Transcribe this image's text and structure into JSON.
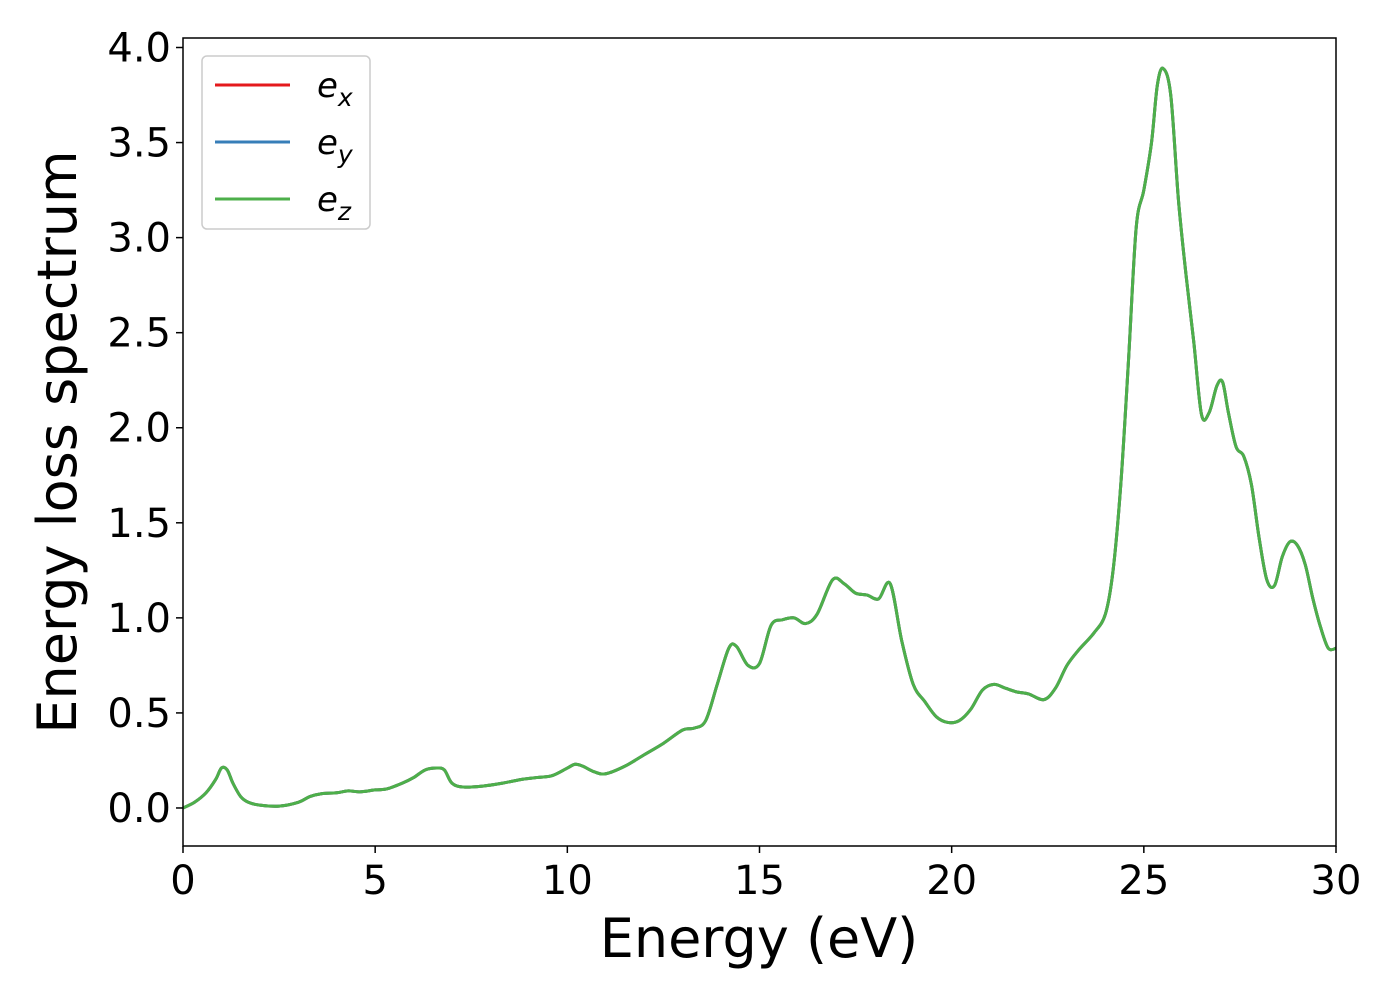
{
  "chart_data": {
    "type": "line",
    "xlabel": "Energy (eV)",
    "ylabel": "Energy loss spectrum",
    "xlim": [
      0,
      30
    ],
    "ylim": [
      -0.2,
      4.05
    ],
    "xticks": [
      0,
      5,
      10,
      15,
      20,
      25,
      30
    ],
    "yticks": [
      0.0,
      0.5,
      1.0,
      1.5,
      2.0,
      2.5,
      3.0,
      3.5,
      4.0
    ],
    "xtick_labels": [
      "0",
      "5",
      "10",
      "15",
      "20",
      "25",
      "30"
    ],
    "ytick_labels": [
      "0.0",
      "0.5",
      "1.0",
      "1.5",
      "2.0",
      "2.5",
      "3.0",
      "3.5",
      "4.0"
    ],
    "grid": false,
    "legend_position": "upper-left",
    "series": [
      {
        "name": "e",
        "sub": "x",
        "color": "#e41a1c"
      },
      {
        "name": "e",
        "sub": "y",
        "color": "#377eb8"
      },
      {
        "name": "e",
        "sub": "z",
        "color": "#4daf4a"
      }
    ],
    "x": [
      0,
      0.3,
      0.6,
      0.85,
      1.0,
      1.15,
      1.3,
      1.5,
      1.7,
      2.0,
      2.5,
      3.0,
      3.3,
      3.6,
      4.0,
      4.3,
      4.6,
      5.0,
      5.3,
      5.7,
      6.0,
      6.3,
      6.6,
      6.8,
      7.0,
      7.3,
      7.8,
      8.3,
      8.8,
      9.2,
      9.6,
      10.0,
      10.2,
      10.4,
      10.7,
      11.0,
      11.5,
      12.0,
      12.5,
      13.0,
      13.3,
      13.6,
      13.9,
      14.2,
      14.4,
      14.7,
      15.0,
      15.3,
      15.6,
      15.9,
      16.2,
      16.5,
      16.9,
      17.2,
      17.5,
      17.8,
      18.1,
      18.4,
      18.7,
      19.0,
      19.3,
      19.6,
      19.9,
      20.2,
      20.5,
      20.8,
      21.1,
      21.4,
      21.7,
      22.0,
      22.4,
      22.7,
      23.0,
      23.3,
      23.7,
      24.0,
      24.2,
      24.4,
      24.6,
      24.8,
      25.0,
      25.2,
      25.35,
      25.5,
      25.7,
      25.9,
      26.1,
      26.3,
      26.5,
      26.7,
      26.9,
      27.05,
      27.2,
      27.4,
      27.6,
      27.8,
      28.0,
      28.2,
      28.4,
      28.6,
      28.8,
      29.0,
      29.2,
      29.4,
      29.6,
      29.8,
      30.0
    ],
    "y": [
      0.0,
      0.03,
      0.08,
      0.15,
      0.21,
      0.2,
      0.13,
      0.06,
      0.03,
      0.015,
      0.01,
      0.03,
      0.06,
      0.075,
      0.08,
      0.09,
      0.085,
      0.095,
      0.1,
      0.13,
      0.16,
      0.2,
      0.21,
      0.2,
      0.13,
      0.11,
      0.115,
      0.13,
      0.15,
      0.16,
      0.17,
      0.21,
      0.23,
      0.22,
      0.19,
      0.18,
      0.22,
      0.28,
      0.34,
      0.41,
      0.42,
      0.46,
      0.65,
      0.84,
      0.85,
      0.75,
      0.76,
      0.96,
      0.99,
      1.0,
      0.97,
      1.02,
      1.2,
      1.18,
      1.13,
      1.12,
      1.1,
      1.18,
      0.88,
      0.65,
      0.56,
      0.48,
      0.45,
      0.46,
      0.52,
      0.62,
      0.65,
      0.63,
      0.61,
      0.6,
      0.57,
      0.63,
      0.75,
      0.83,
      0.92,
      1.02,
      1.25,
      1.7,
      2.35,
      3.05,
      3.25,
      3.5,
      3.8,
      3.89,
      3.75,
      3.2,
      2.8,
      2.45,
      2.07,
      2.08,
      2.22,
      2.24,
      2.08,
      1.9,
      1.85,
      1.7,
      1.42,
      1.2,
      1.17,
      1.32,
      1.4,
      1.38,
      1.28,
      1.1,
      0.95,
      0.84,
      0.84
    ]
  }
}
